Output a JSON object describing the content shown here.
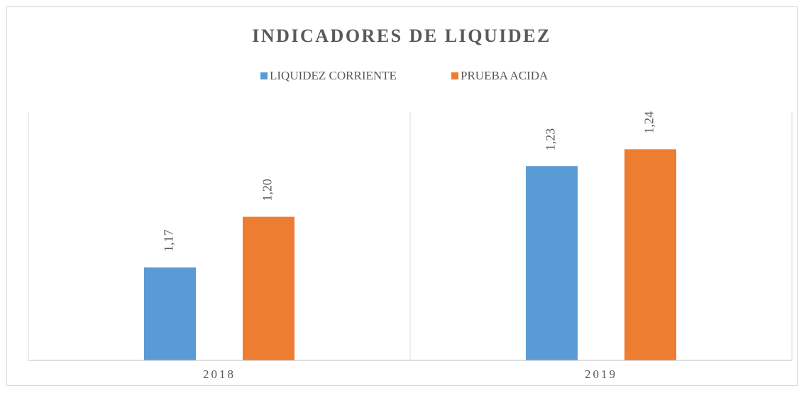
{
  "chart_data": {
    "type": "bar",
    "title": "INDICADORES DE LIQUIDEZ",
    "categories": [
      "2018",
      "2019"
    ],
    "series": [
      {
        "name": "LIQUIDEZ CORRIENTE",
        "color": "#5b9bd5",
        "values": [
          1.17,
          1.23
        ],
        "value_labels": [
          "1,17",
          "1,23"
        ]
      },
      {
        "name": "PRUEBA ACIDA",
        "color": "#ed7d31",
        "values": [
          1.2,
          1.24
        ],
        "value_labels": [
          "1,20",
          "1,24"
        ]
      }
    ],
    "ylim": [
      1.115,
      1.262
    ],
    "legend": "top"
  }
}
